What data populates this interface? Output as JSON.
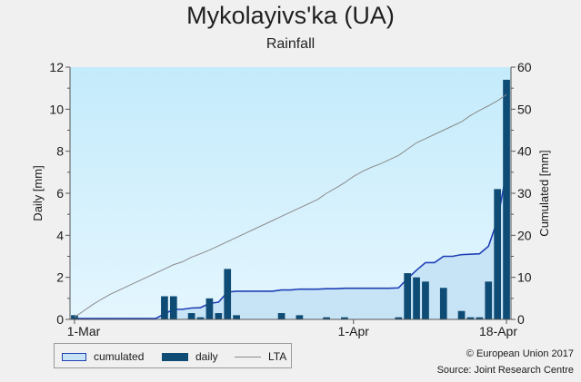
{
  "chart_data": {
    "type": "bar",
    "title": "Mykolayivs'ka (UA)",
    "subtitle": "Rainfall",
    "ylabel": "Daily [mm]",
    "y2label": "Cumulated [mm]",
    "ylim": [
      0,
      12
    ],
    "y2lim": [
      0,
      60
    ],
    "yticks": [
      "0",
      "2",
      "4",
      "6",
      "8",
      "10",
      "12"
    ],
    "y2ticks": [
      "0",
      "10",
      "20",
      "30",
      "40",
      "50",
      "60"
    ],
    "xticks": [
      {
        "label": "1-Mar",
        "day": 1
      },
      {
        "label": "1-Apr",
        "day": 32
      },
      {
        "label": "18-Apr",
        "day": 49
      }
    ],
    "days": 49,
    "series": [
      {
        "name": "daily",
        "type": "bar",
        "axis": "left",
        "color": "#0f4c75",
        "values": [
          0.2,
          0,
          0,
          0,
          0,
          0,
          0,
          0,
          0,
          0,
          1.1,
          1.1,
          0,
          0.3,
          0.1,
          1.0,
          0.3,
          2.4,
          0.2,
          0,
          0,
          0,
          0,
          0.3,
          0,
          0.2,
          0,
          0,
          0.1,
          0,
          0.1,
          0,
          0,
          0,
          0,
          0,
          0.1,
          2.2,
          2.0,
          1.8,
          0,
          1.5,
          0,
          0.4,
          0.1,
          0.1,
          1.8,
          6.2,
          11.4
        ]
      },
      {
        "name": "cumulated",
        "type": "area",
        "axis": "right",
        "color": "#1f3fb5",
        "fill": "#c7e4f7",
        "values": [
          0.2,
          0.2,
          0.2,
          0.2,
          0.2,
          0.2,
          0.2,
          0.2,
          0.2,
          0.2,
          1.3,
          2.4,
          2.4,
          2.7,
          2.8,
          3.8,
          4.1,
          6.5,
          6.7,
          6.7,
          6.7,
          6.7,
          6.7,
          7.0,
          7.0,
          7.2,
          7.2,
          7.2,
          7.3,
          7.3,
          7.4,
          7.4,
          7.4,
          7.4,
          7.4,
          7.4,
          7.5,
          9.7,
          11.7,
          13.5,
          13.5,
          15.0,
          15.0,
          15.4,
          15.5,
          15.6,
          17.4,
          23.6,
          35.0
        ]
      },
      {
        "name": "LTA",
        "type": "line",
        "axis": "right",
        "color": "#8a8a8a",
        "values": [
          0.5,
          2.0,
          3.5,
          4.8,
          6.0,
          7.0,
          8.0,
          9.0,
          10.0,
          11.0,
          12.0,
          13.0,
          13.7,
          14.8,
          15.6,
          16.5,
          17.5,
          18.5,
          19.5,
          20.5,
          21.5,
          22.5,
          23.5,
          24.5,
          25.5,
          26.5,
          27.5,
          28.5,
          30.0,
          31.2,
          32.5,
          34.0,
          35.2,
          36.2,
          37.0,
          38.0,
          39.0,
          40.5,
          42.0,
          43.0,
          44.0,
          45.0,
          46.0,
          47.0,
          48.5,
          49.7,
          50.8,
          52.0,
          53.5
        ]
      }
    ],
    "legend_position": "bottom-left",
    "grid": false,
    "background_color": "#c9ecfa"
  },
  "legend": {
    "cumulated": "cumulated",
    "daily": "daily",
    "lta": "LTA"
  },
  "credits": {
    "copyright": "© European Union 2017",
    "source": "Source: Joint Research Centre"
  }
}
